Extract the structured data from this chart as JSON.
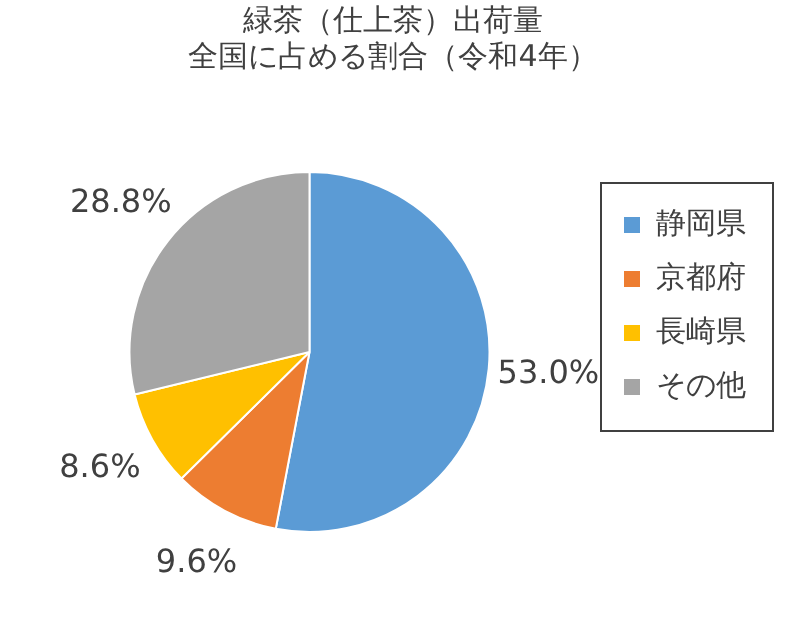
{
  "chart_data": {
    "type": "pie",
    "title": "緑茶（仕上茶）出荷量",
    "subtitle": "全国に占める割合（令和4年）",
    "categories": [
      "静岡県",
      "京都府",
      "長崎県",
      "その他"
    ],
    "values": [
      53.0,
      9.6,
      8.6,
      28.8
    ],
    "value_labels": [
      "53.0%",
      "9.6%",
      "8.6%",
      "28.8%"
    ],
    "colors": [
      "#5b9bd5",
      "#ed7d31",
      "#ffc000",
      "#a5a5a5"
    ],
    "legend": "right"
  }
}
